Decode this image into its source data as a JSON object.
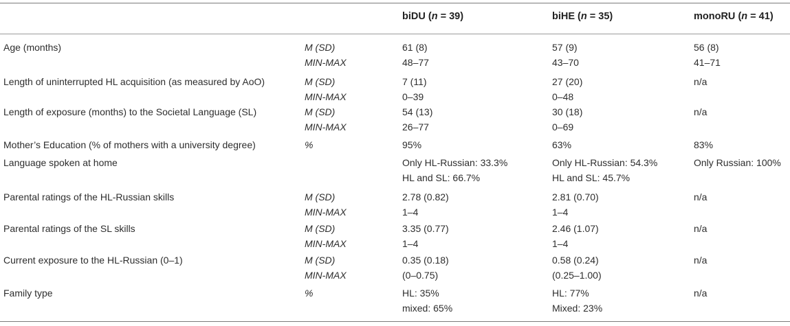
{
  "header": {
    "col1": {
      "name": "biDU",
      "n": "39"
    },
    "col2": {
      "name": "biHE",
      "n": "35"
    },
    "col3": {
      "name": "monoRU",
      "n": "41"
    }
  },
  "rows": [
    {
      "label": "Age (months)",
      "stats": [
        "M (SD)",
        "MIN-MAX"
      ],
      "c1": [
        "61 (8)",
        "48–77"
      ],
      "c2": [
        "57 (9)",
        "43–70"
      ],
      "c3": [
        "56 (8)",
        "41–71"
      ]
    },
    {
      "label": "Length of uninterrupted HL acquisition (as measured by AoO)",
      "stats": [
        "M (SD)",
        "MIN-MAX"
      ],
      "c1": [
        "7 (11)",
        "0–39"
      ],
      "c2": [
        "27 (20)",
        "0–48"
      ],
      "c3": [
        "n/a",
        ""
      ]
    },
    {
      "label": "Length of exposure (months) to the Societal Language (SL)",
      "stats": [
        "M (SD)",
        "MIN-MAX"
      ],
      "c1": [
        "54 (13)",
        "26–77"
      ],
      "c2": [
        "30 (18)",
        "0–69"
      ],
      "c3": [
        "n/a",
        ""
      ]
    },
    {
      "label": "Mother’s Education (% of mothers with a university degree)",
      "stats": [
        "%",
        ""
      ],
      "c1": [
        "95%",
        ""
      ],
      "c2": [
        "63%",
        ""
      ],
      "c3": [
        "83%",
        ""
      ]
    },
    {
      "label": "Language spoken at home",
      "stats": [
        "",
        ""
      ],
      "c1": [
        "Only HL-Russian: 33.3%",
        "HL and SL: 66.7%"
      ],
      "c2": [
        "Only HL-Russian: 54.3%",
        "HL and SL: 45.7%"
      ],
      "c3": [
        "Only Russian: 100%",
        ""
      ]
    },
    {
      "label": "Parental ratings of the HL-Russian skills",
      "stats": [
        "M (SD)",
        "MIN-MAX"
      ],
      "c1": [
        "2.78 (0.82)",
        "1–4"
      ],
      "c2": [
        "2.81 (0.70)",
        "1–4"
      ],
      "c3": [
        "n/a",
        ""
      ]
    },
    {
      "label": "Parental ratings of the SL skills",
      "stats": [
        "M (SD)",
        "MIN-MAX"
      ],
      "c1": [
        "3.35 (0.77)",
        "1–4"
      ],
      "c2": [
        "2.46 (1.07)",
        "1–4"
      ],
      "c3": [
        "n/a",
        ""
      ]
    },
    {
      "label": "Current exposure to the HL-Russian (0–1)",
      "stats": [
        "M (SD)",
        "MIN-MAX"
      ],
      "c1": [
        "0.35 (0.18)",
        "(0–0.75)"
      ],
      "c2": [
        "0.58 (0.24)",
        "(0.25–1.00)"
      ],
      "c3": [
        "n/a",
        ""
      ]
    },
    {
      "label": "Family type",
      "stats": [
        "%",
        ""
      ],
      "c1": [
        "HL: 35%",
        "mixed: 65%"
      ],
      "c2": [
        "HL: 77%",
        "Mixed: 23%"
      ],
      "c3": [
        "n/a",
        ""
      ]
    }
  ]
}
